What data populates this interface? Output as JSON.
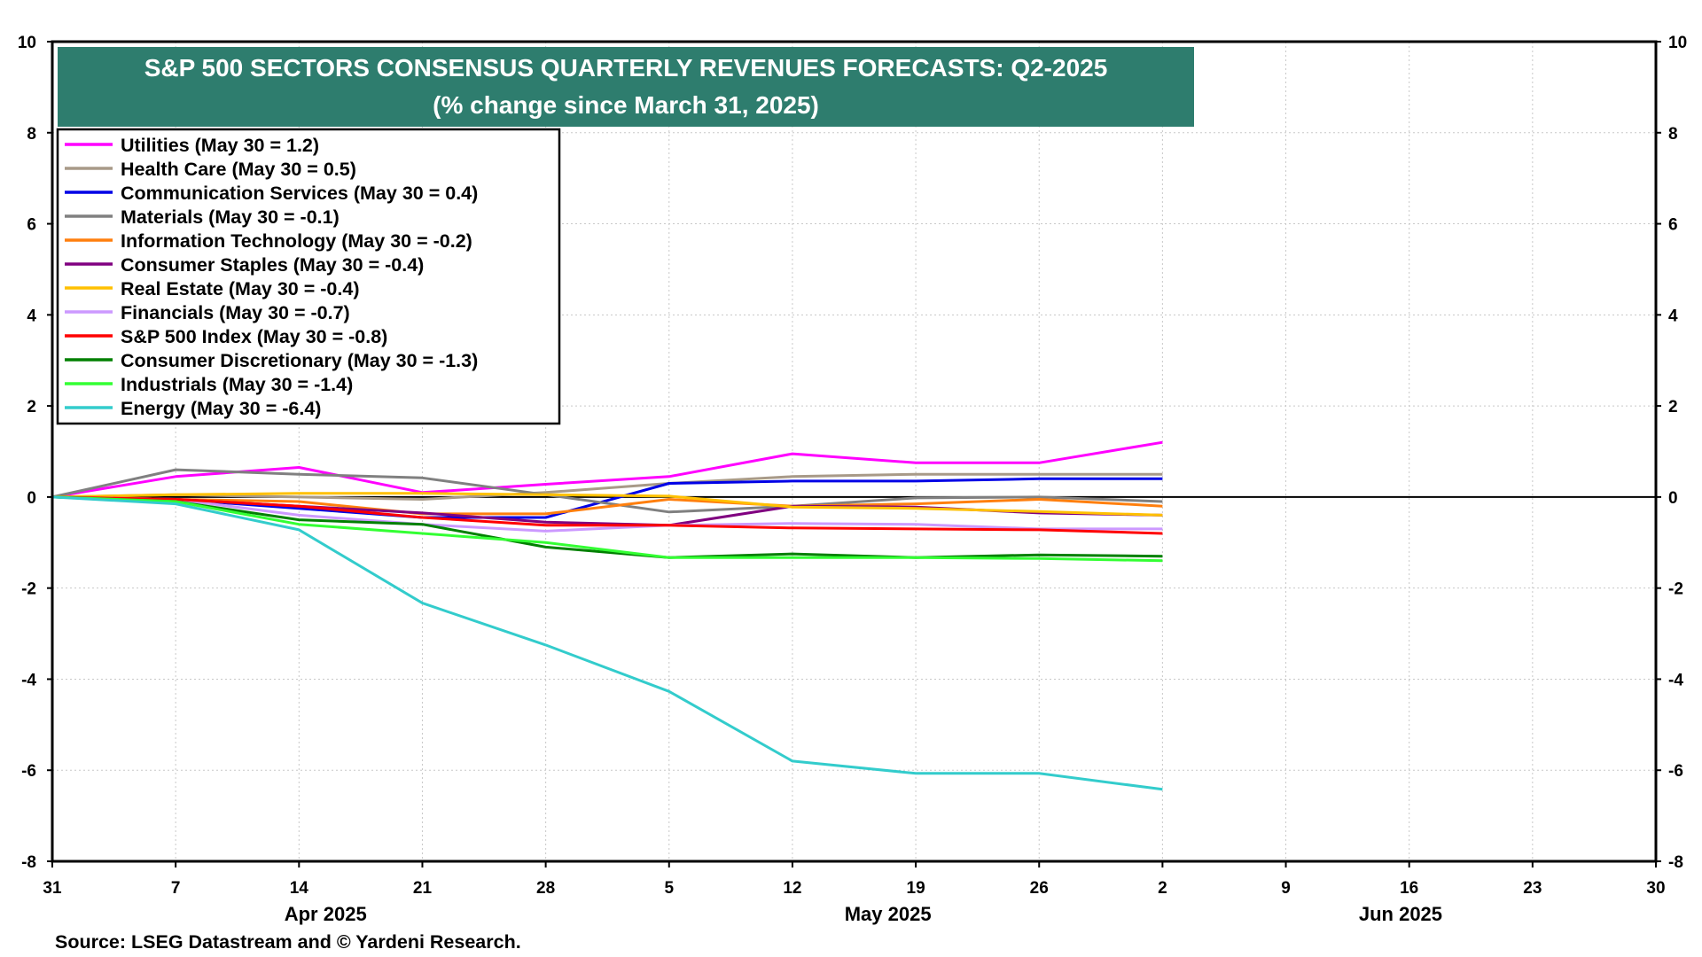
{
  "chart_data": {
    "type": "line",
    "title": "S&P 500 SECTORS CONSENSUS QUARTERLY REVENUES FORECASTS: Q2-2025",
    "subtitle": "(% change since March 31, 2025)",
    "source": "Source: LSEG Datastream and © Yardeni Research.",
    "ylim": [
      -8,
      10
    ],
    "y_ticks": [
      "10",
      "8",
      "6",
      "4",
      "2",
      "0",
      "-2",
      "-4",
      "-6",
      "-8"
    ],
    "x_dates": [
      "2025-03-31",
      "2025-04-07",
      "2025-04-14",
      "2025-04-21",
      "2025-04-28",
      "2025-05-05",
      "2025-05-12",
      "2025-05-19",
      "2025-05-26",
      "2025-06-02",
      "2025-06-09",
      "2025-06-16",
      "2025-06-23",
      "2025-06-30"
    ],
    "x_tick_labels": [
      "31",
      "7",
      "14",
      "21",
      "28",
      "5",
      "12",
      "19",
      "26",
      "2",
      "9",
      "16",
      "23",
      "30"
    ],
    "month_labels": [
      "Apr 2025",
      "May 2025",
      "Jun 2025"
    ],
    "grid": true,
    "legend_position": "top-left",
    "series": [
      {
        "name": "Utilities (May 30 = 1.2)",
        "color": "#ff00ff",
        "values": [
          0,
          0.45,
          0.65,
          0.1,
          0.28,
          0.45,
          0.95,
          0.75,
          0.75,
          1.2
        ]
      },
      {
        "name": "Health Care (May 30 = 0.5)",
        "color": "#a89a88",
        "values": [
          0,
          0.05,
          0.0,
          -0.05,
          0.1,
          0.3,
          0.45,
          0.5,
          0.5,
          0.5
        ]
      },
      {
        "name": "Communication Services (May 30 = 0.4)",
        "color": "#0000e6",
        "values": [
          0,
          -0.05,
          -0.25,
          -0.45,
          -0.45,
          0.3,
          0.35,
          0.35,
          0.4,
          0.4
        ]
      },
      {
        "name": "Materials (May 30 = -0.1)",
        "color": "#808080",
        "values": [
          0,
          0.6,
          0.5,
          0.42,
          0.05,
          -0.33,
          -0.2,
          -0.02,
          0.0,
          -0.1
        ]
      },
      {
        "name": "Information Technology (May 30 = -0.2)",
        "color": "#ff7f0e",
        "values": [
          0,
          -0.05,
          -0.1,
          -0.37,
          -0.37,
          -0.05,
          -0.2,
          -0.15,
          -0.05,
          -0.2
        ]
      },
      {
        "name": "Consumer Staples (May 30 = -0.4)",
        "color": "#800080",
        "values": [
          0,
          -0.05,
          -0.2,
          -0.35,
          -0.55,
          -0.62,
          -0.2,
          -0.22,
          -0.35,
          -0.4
        ]
      },
      {
        "name": "Real Estate (May 30 = -0.4)",
        "color": "#ffc000",
        "values": [
          0,
          0.05,
          0.08,
          0.08,
          0.05,
          0.02,
          -0.22,
          -0.25,
          -0.32,
          -0.4
        ]
      },
      {
        "name": "Financials (May 30 = -0.7)",
        "color": "#cc99ff",
        "values": [
          0,
          -0.05,
          -0.4,
          -0.6,
          -0.75,
          -0.62,
          -0.58,
          -0.6,
          -0.7,
          -0.7
        ]
      },
      {
        "name": "S&P 500 Index (May 30 = -0.8)",
        "color": "#ff0000",
        "values": [
          0,
          -0.05,
          -0.2,
          -0.45,
          -0.62,
          -0.62,
          -0.68,
          -0.7,
          -0.72,
          -0.8
        ]
      },
      {
        "name": "Consumer Discretionary (May 30 = -1.3)",
        "color": "#008000",
        "values": [
          0,
          -0.1,
          -0.5,
          -0.6,
          -1.1,
          -1.33,
          -1.25,
          -1.33,
          -1.27,
          -1.3
        ]
      },
      {
        "name": "Industrials (May 30 = -1.4)",
        "color": "#33ff33",
        "values": [
          0,
          -0.1,
          -0.6,
          -0.8,
          -1.0,
          -1.33,
          -1.33,
          -1.33,
          -1.35,
          -1.4
        ]
      },
      {
        "name": "Energy (May 30 = -6.4)",
        "color": "#33cccc",
        "values": [
          0,
          -0.15,
          -0.72,
          -2.33,
          -3.25,
          -4.27,
          -5.8,
          -6.07,
          -6.07,
          -6.42
        ]
      }
    ],
    "colors": {
      "title_bg": "#2e7d6e",
      "title_text": "#ffffff",
      "axis": "#000000",
      "grid": "#c8c8c8",
      "zero_line": "#000000"
    }
  }
}
